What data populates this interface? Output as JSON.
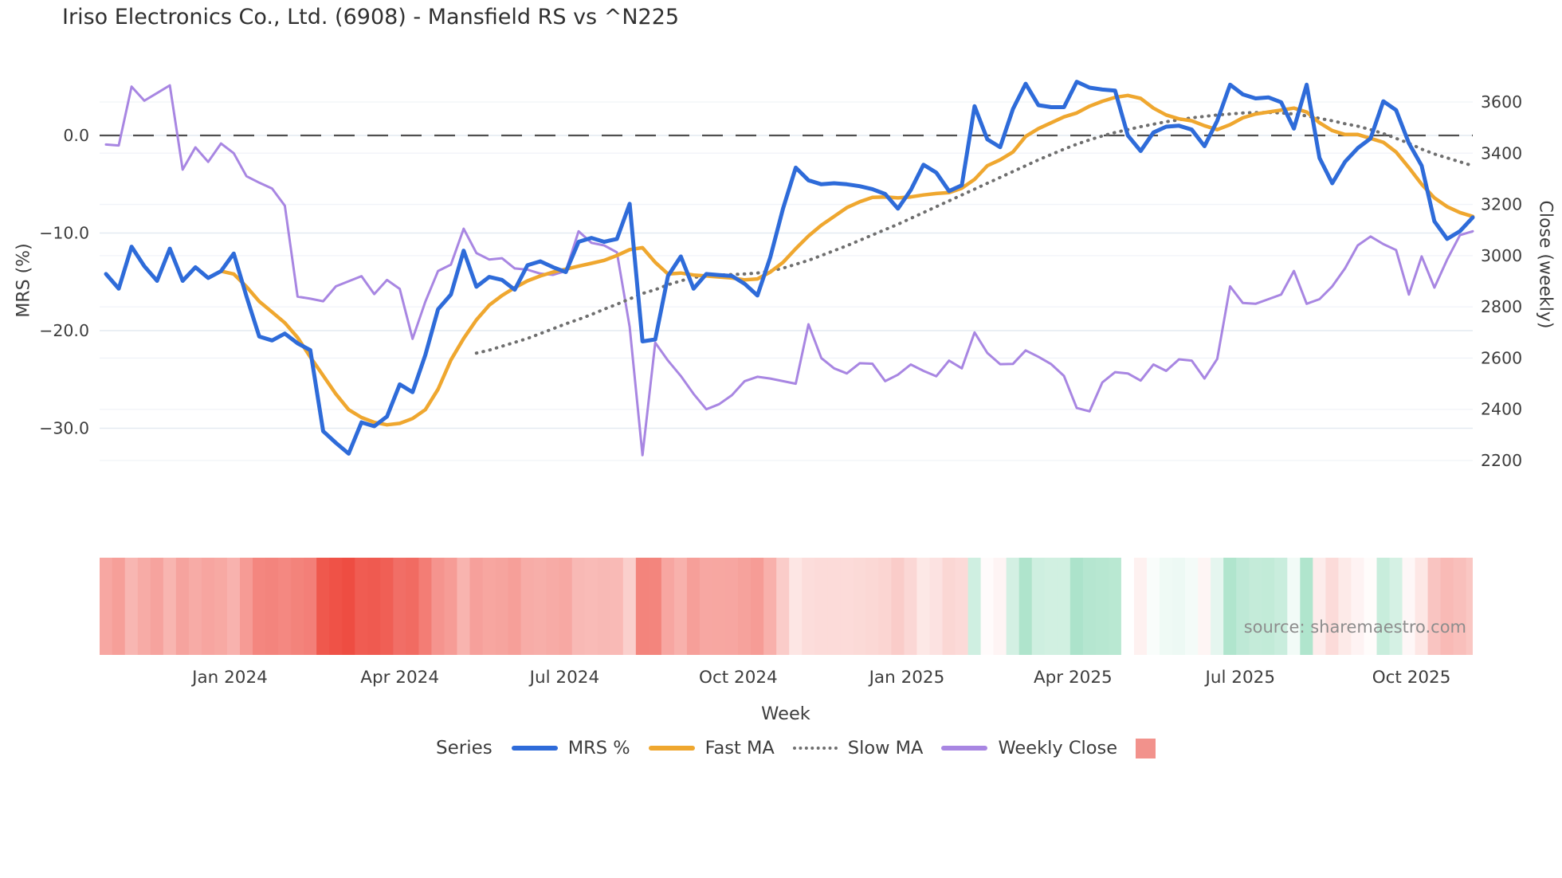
{
  "title": "Iriso Electronics Co., Ltd. (6908) - Mansfield RS vs ^N225",
  "source": "source: sharemaestro.com",
  "colors": {
    "mrs": "#2e6bd9",
    "fast_ma": "#efa72f",
    "slow_ma": "#6f6f6f",
    "weekly_close": "#a886e2",
    "heatmap_negative": "#ee4b40",
    "heatmap_positive": "#9fdfc2",
    "zero_line": "#4f4f4f",
    "gridline": "#e4eaf1",
    "gridline_faint": "#f0f3f8",
    "axis_text": "#3d3d3d",
    "source_text": "#8d8d8d"
  },
  "legend": {
    "title": "Series",
    "items": [
      {
        "label": "MRS %",
        "swatch": "line",
        "color": "#2e6bd9"
      },
      {
        "label": "Fast MA",
        "swatch": "line",
        "color": "#efa72f"
      },
      {
        "label": "Slow MA",
        "swatch": "dotted",
        "color": "#6f6f6f"
      },
      {
        "label": "Weekly Close",
        "swatch": "line",
        "color": "#a886e2"
      },
      {
        "label": "",
        "swatch": "square",
        "color": "#f2928c"
      }
    ]
  },
  "chart_data": {
    "type": "line",
    "title": "Iriso Electronics Co., Ltd. (6908) - Mansfield RS vs ^N225",
    "xlabel": "Week",
    "ylabel_left": "MRS (%)",
    "ylabel_right": "Close (weekly)",
    "weeks_total": 107,
    "x_tick_labels": [
      "Jan 2024",
      "Apr 2024",
      "Jul 2024",
      "Oct 2024",
      "Jan 2025",
      "Apr 2025",
      "Jul 2025",
      "Oct 2025"
    ],
    "x_tick_weeks": [
      9.7,
      23.0,
      35.9,
      49.5,
      62.7,
      75.7,
      88.8,
      102.2
    ],
    "y_left": {
      "ticks": [
        0,
        -10,
        -20,
        -30
      ],
      "tick_labels": [
        "0.0",
        "−10.0",
        "−20.0",
        "−30.0"
      ],
      "range": [
        -34,
        7
      ]
    },
    "y_right": {
      "ticks": [
        3600,
        3400,
        3200,
        3000,
        2800,
        2600,
        2400,
        2200
      ],
      "range": [
        2150,
        3700
      ]
    },
    "zero_line": 0,
    "grid": true,
    "legend_position": "bottom",
    "series": [
      {
        "name": "MRS %",
        "axis": "left",
        "style": "solid",
        "color": "#2e6bd9",
        "width": 5,
        "values": [
          -14.2,
          -15.7,
          -11.4,
          -13.4,
          -14.9,
          -11.6,
          -14.9,
          -13.5,
          -14.6,
          -13.9,
          -12.1,
          -16.5,
          -20.6,
          -21.0,
          -20.3,
          -21.3,
          -22.0,
          -30.3,
          -31.5,
          -32.6,
          -29.4,
          -29.8,
          -28.8,
          -25.5,
          -26.3,
          -22.5,
          -17.8,
          -16.3,
          -11.8,
          -15.5,
          -14.5,
          -14.8,
          -15.8,
          -13.3,
          -12.9,
          -13.5,
          -14.0,
          -10.9,
          -10.5,
          -10.9,
          -10.6,
          -7.0,
          -21.1,
          -20.9,
          -14.4,
          -12.4,
          -15.7,
          -14.2,
          -14.3,
          -14.4,
          -15.2,
          -16.4,
          -12.5,
          -7.5,
          -3.3,
          -4.6,
          -5.0,
          -4.9,
          -5.0,
          -5.2,
          -5.5,
          -6.0,
          -7.5,
          -5.6,
          -3.0,
          -3.8,
          -5.7,
          -5.1,
          3.0,
          -0.4,
          -1.2,
          2.7,
          5.3,
          3.1,
          2.9,
          2.9,
          5.5,
          4.9,
          4.7,
          4.6,
          0.0,
          -1.6,
          0.3,
          0.9,
          1.0,
          0.6,
          -1.1,
          1.5,
          5.2,
          4.2,
          3.8,
          3.9,
          3.4,
          0.7,
          5.2,
          -2.3,
          -4.9,
          -2.7,
          -1.3,
          -0.3,
          3.5,
          2.6,
          -0.8,
          -3.1,
          -8.8,
          -10.6,
          -9.8,
          -8.4
        ]
      },
      {
        "name": "Fast MA",
        "axis": "left",
        "style": "solid",
        "color": "#efa72f",
        "width": 4.5,
        "values": [
          null,
          null,
          null,
          null,
          null,
          null,
          null,
          null,
          null,
          -13.9,
          -14.2,
          -15.5,
          -17.0,
          -18.1,
          -19.2,
          -20.7,
          -22.7,
          -24.6,
          -26.5,
          -28.1,
          -28.9,
          -29.4,
          -29.65,
          -29.5,
          -29.0,
          -28.1,
          -26.0,
          -23.0,
          -20.8,
          -18.9,
          -17.4,
          -16.4,
          -15.6,
          -14.9,
          -14.4,
          -14.0,
          -13.7,
          -13.4,
          -13.1,
          -12.8,
          -12.3,
          -11.7,
          -11.5,
          -13.0,
          -14.2,
          -14.1,
          -14.3,
          -14.4,
          -14.5,
          -14.6,
          -14.8,
          -14.7,
          -14.0,
          -13.0,
          -11.6,
          -10.3,
          -9.2,
          -8.3,
          -7.4,
          -6.8,
          -6.35,
          -6.3,
          -6.4,
          -6.3,
          -6.1,
          -5.95,
          -5.85,
          -5.4,
          -4.5,
          -3.1,
          -2.5,
          -1.7,
          -0.1,
          0.7,
          1.3,
          1.9,
          2.3,
          3.0,
          3.5,
          3.9,
          4.1,
          3.8,
          2.8,
          2.1,
          1.7,
          1.5,
          1.0,
          0.6,
          1.1,
          1.8,
          2.2,
          2.4,
          2.6,
          2.8,
          2.4,
          1.3,
          0.5,
          0.1,
          0.1,
          -0.3,
          -0.7,
          -1.7,
          -3.3,
          -5.0,
          -6.4,
          -7.3,
          -7.9,
          -8.3
        ]
      },
      {
        "name": "Slow MA",
        "axis": "left",
        "style": "dotted",
        "color": "#6f6f6f",
        "width": 4,
        "values": [
          null,
          null,
          null,
          null,
          null,
          null,
          null,
          null,
          null,
          null,
          null,
          null,
          null,
          null,
          null,
          null,
          null,
          null,
          null,
          null,
          null,
          null,
          null,
          null,
          null,
          null,
          null,
          null,
          null,
          -22.3,
          -22.0,
          -21.6,
          -21.2,
          -20.8,
          -20.3,
          -19.8,
          -19.3,
          -18.85,
          -18.35,
          -17.8,
          -17.3,
          -16.75,
          -16.2,
          -15.8,
          -15.3,
          -14.9,
          -14.55,
          -14.4,
          -14.3,
          -14.25,
          -14.2,
          -14.1,
          -13.9,
          -13.6,
          -13.2,
          -12.8,
          -12.3,
          -11.8,
          -11.3,
          -10.75,
          -10.2,
          -9.65,
          -9.1,
          -8.5,
          -7.9,
          -7.3,
          -6.7,
          -6.1,
          -5.5,
          -4.9,
          -4.3,
          -3.7,
          -3.1,
          -2.5,
          -1.95,
          -1.4,
          -0.9,
          -0.45,
          -0.05,
          0.3,
          0.6,
          0.9,
          1.15,
          1.4,
          1.6,
          1.8,
          1.95,
          2.1,
          2.2,
          2.3,
          2.35,
          2.35,
          2.3,
          2.2,
          2.0,
          1.75,
          1.5,
          1.2,
          0.95,
          0.6,
          0.2,
          -0.3,
          -0.8,
          -1.4,
          -1.9,
          -2.3,
          -2.7,
          -3.1
        ]
      },
      {
        "name": "Weekly Close",
        "axis": "right",
        "style": "solid",
        "color": "#a886e2",
        "width": 3,
        "values": [
          3434,
          3430,
          3660,
          3605,
          3635,
          3665,
          3336,
          3423,
          3366,
          3438,
          3400,
          3310,
          3285,
          3262,
          3195,
          2840,
          2832,
          2822,
          2880,
          2900,
          2920,
          2850,
          2905,
          2870,
          2675,
          2820,
          2940,
          2965,
          3105,
          3010,
          2985,
          2990,
          2950,
          2945,
          2930,
          2925,
          2940,
          3095,
          3050,
          3040,
          3013,
          2722,
          2221,
          2660,
          2590,
          2530,
          2460,
          2400,
          2420,
          2455,
          2510,
          2527,
          2520,
          2510,
          2500,
          2732,
          2600,
          2560,
          2540,
          2580,
          2578,
          2510,
          2535,
          2575,
          2550,
          2529,
          2590,
          2560,
          2700,
          2620,
          2576,
          2577,
          2630,
          2605,
          2576,
          2530,
          2405,
          2392,
          2505,
          2545,
          2540,
          2512,
          2575,
          2550,
          2595,
          2590,
          2520,
          2597,
          2880,
          2815,
          2812,
          2830,
          2848,
          2940,
          2812,
          2830,
          2880,
          2950,
          3040,
          3075,
          3045,
          3022,
          2848,
          2997,
          2875,
          2985,
          3080,
          3095
        ]
      }
    ],
    "heatmap": {
      "based_on": "MRS %",
      "description": "weekly color strip under the chart: red shades for negative MRS, mint green for positive MRS",
      "negative_color": "#ee4b40",
      "positive_color": "#9fdfc2"
    }
  }
}
